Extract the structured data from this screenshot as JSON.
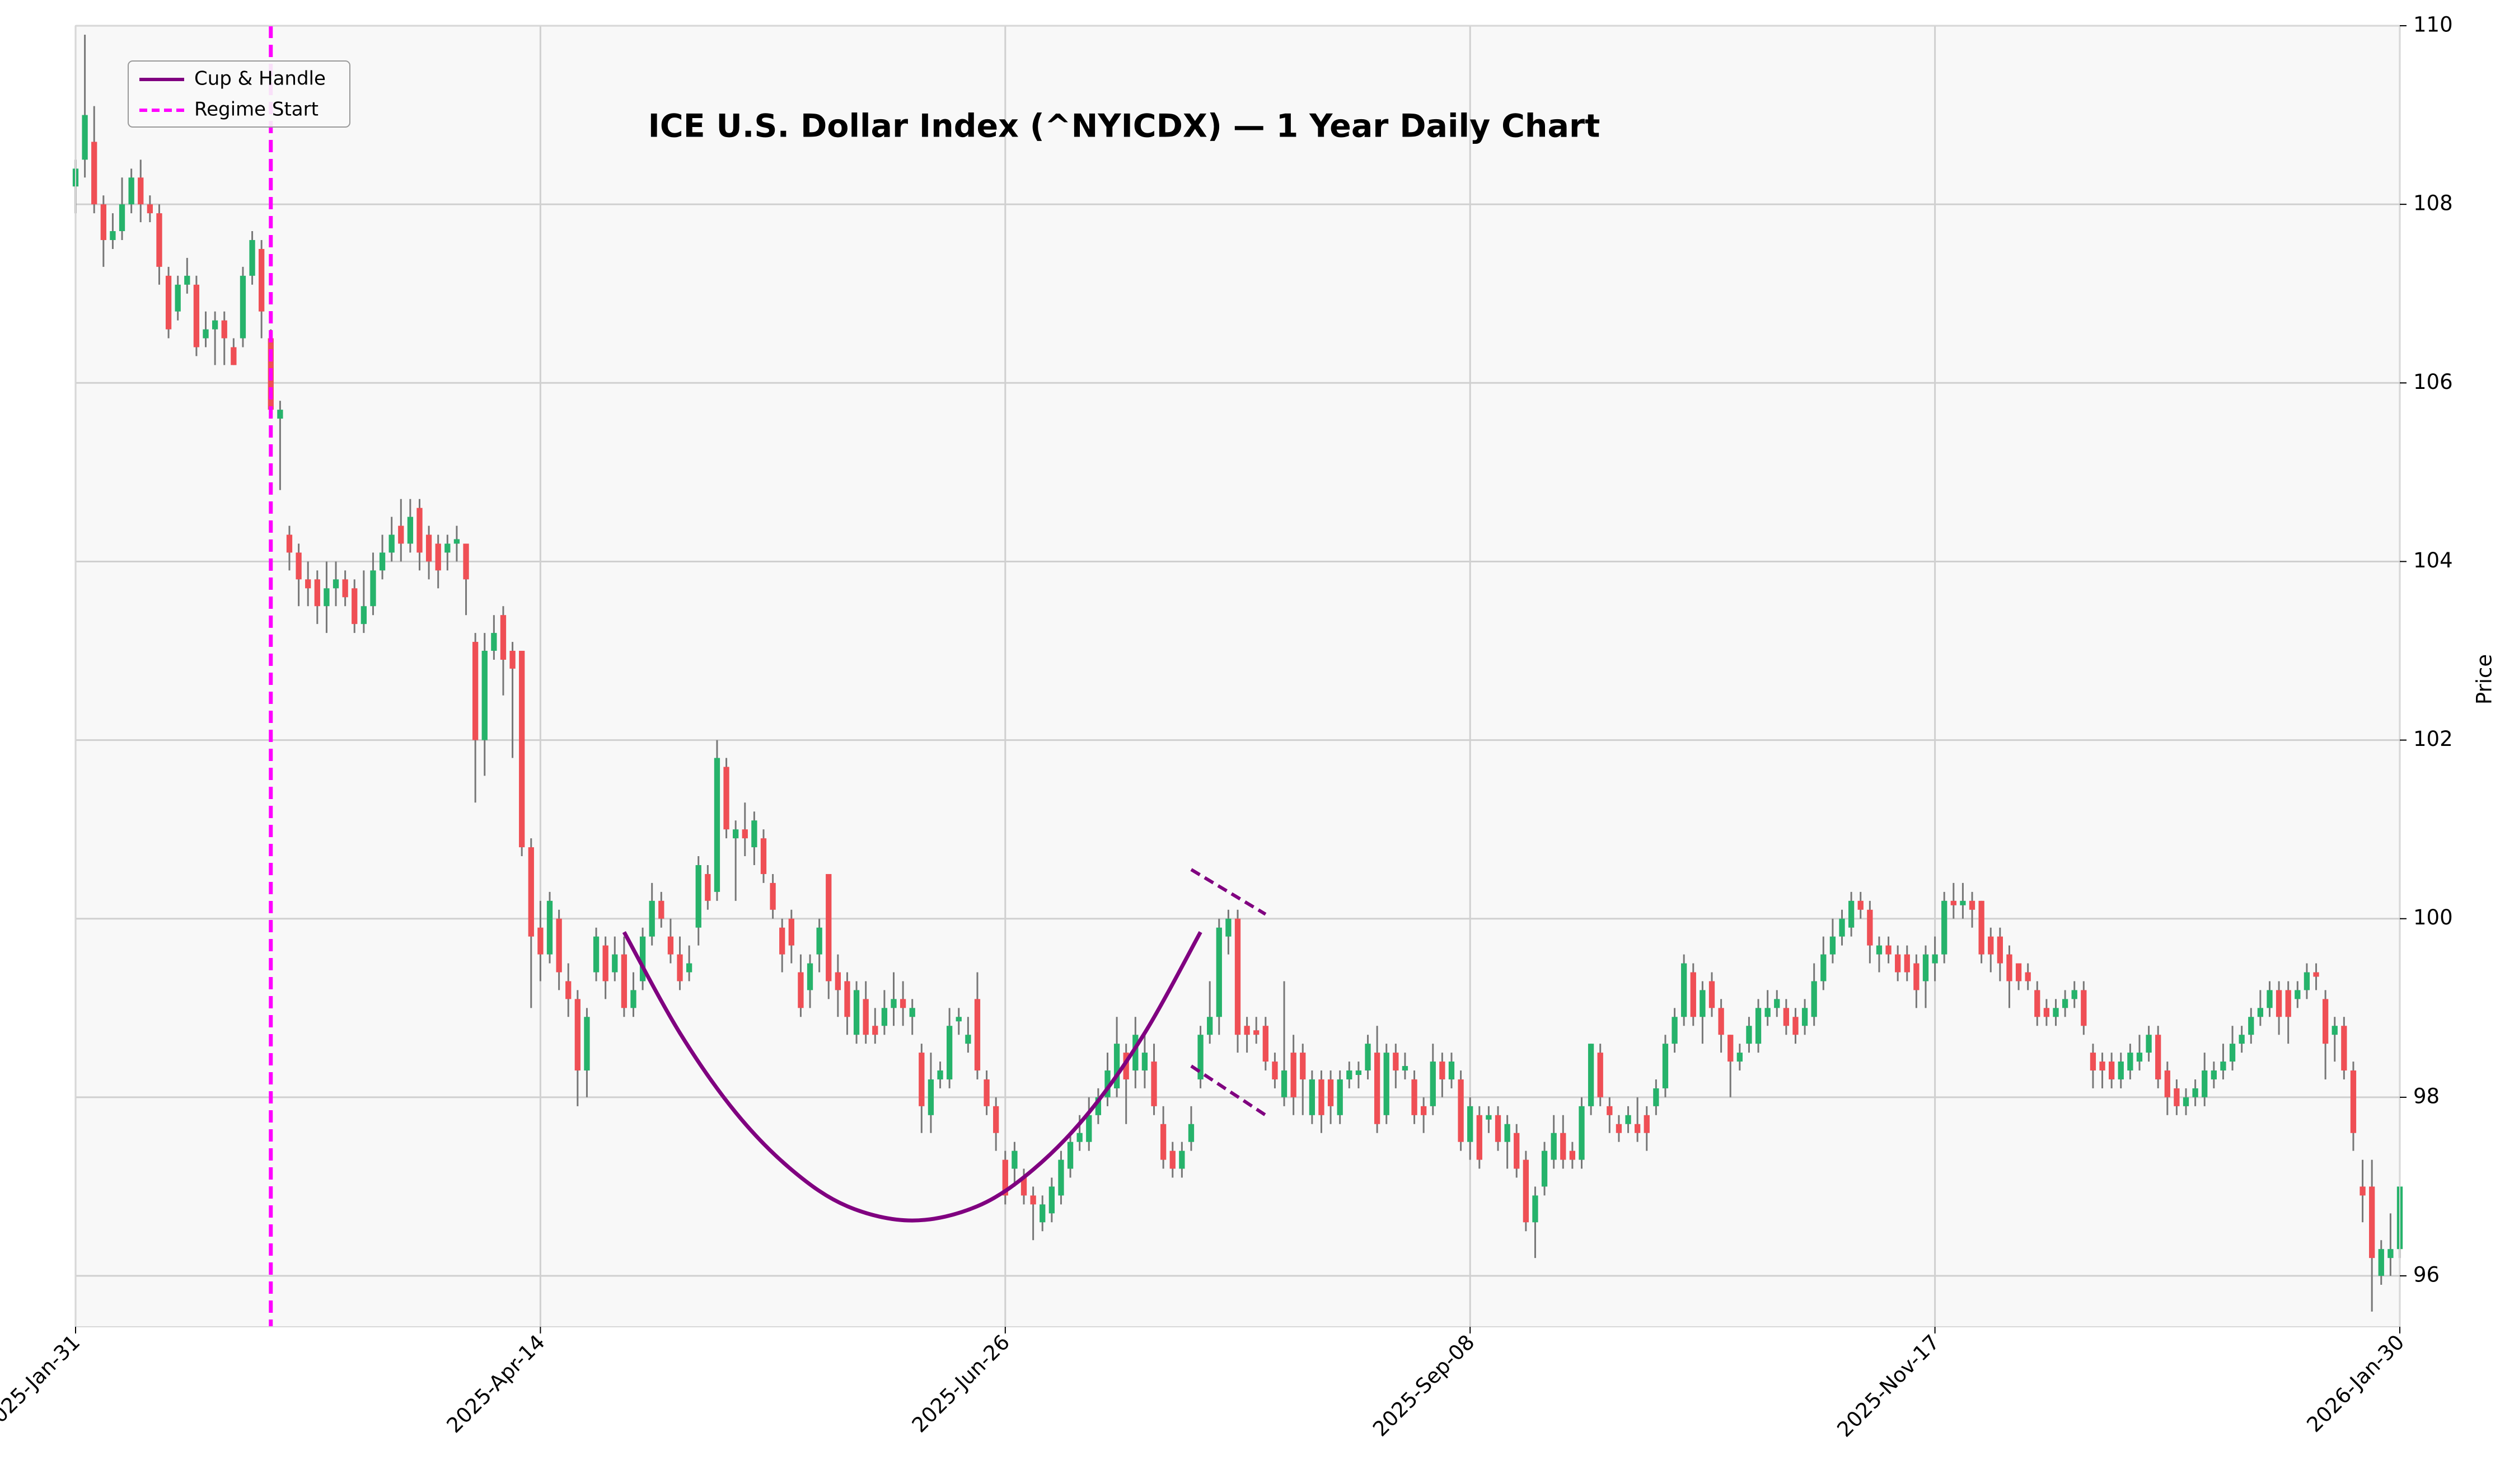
{
  "chart_data": {
    "type": "candlestick",
    "title": "ICE U.S. Dollar Index (^NYICDX) — 1 Year Daily Chart",
    "ylabel": "Price",
    "categories": [
      "2025-Jan-31",
      null,
      null,
      null,
      null,
      null,
      null,
      null,
      null,
      null,
      null,
      null,
      null,
      null,
      null,
      null,
      null,
      null,
      null,
      null,
      null,
      null,
      null,
      null,
      null,
      null,
      null,
      null,
      null,
      null,
      null,
      null,
      null,
      null,
      null,
      null,
      null,
      null,
      null,
      null,
      null,
      null,
      null,
      null,
      null,
      null,
      null,
      null,
      null,
      null,
      "2025-Apr-14",
      null,
      null,
      null,
      null,
      null,
      null,
      null,
      null,
      null,
      null,
      null,
      null,
      null,
      null,
      null,
      null,
      null,
      null,
      null,
      null,
      null,
      null,
      null,
      null,
      null,
      null,
      null,
      null,
      null,
      null,
      null,
      null,
      null,
      null,
      null,
      null,
      null,
      null,
      null,
      null,
      null,
      null,
      null,
      null,
      null,
      null,
      null,
      null,
      null,
      "2025-Jun-26",
      null,
      null,
      null,
      null,
      null,
      null,
      null,
      null,
      null,
      null,
      null,
      null,
      null,
      null,
      null,
      null,
      null,
      null,
      null,
      null,
      null,
      null,
      null,
      null,
      null,
      null,
      null,
      null,
      null,
      null,
      null,
      null,
      null,
      null,
      null,
      null,
      null,
      null,
      null,
      null,
      null,
      null,
      null,
      null,
      null,
      null,
      null,
      null,
      null,
      "2025-Sep-08",
      null,
      null,
      null,
      null,
      null,
      null,
      null,
      null,
      null,
      null,
      null,
      null,
      null,
      null,
      null,
      null,
      null,
      null,
      null,
      null,
      null,
      null,
      null,
      null,
      null,
      null,
      null,
      null,
      null,
      null,
      null,
      null,
      null,
      null,
      null,
      null,
      null,
      null,
      null,
      null,
      null,
      null,
      null,
      null,
      null,
      null,
      null,
      null,
      null,
      "2025-Nov-17",
      null,
      null,
      null,
      null,
      null,
      null,
      null,
      null,
      null,
      null,
      null,
      null,
      null,
      null,
      null,
      null,
      null,
      null,
      null,
      null,
      null,
      null,
      null,
      null,
      null,
      null,
      null,
      null,
      null,
      null,
      null,
      null,
      null,
      null,
      null,
      null,
      null,
      null,
      null,
      null,
      null,
      null,
      null,
      null,
      null,
      null,
      null,
      null,
      null,
      "2026-Jan-30"
    ],
    "open": [
      108.2,
      108.5,
      108.7,
      108.0,
      107.6,
      107.7,
      108.0,
      108.3,
      108.0,
      107.9,
      107.2,
      106.8,
      107.1,
      107.1,
      106.5,
      106.6,
      106.7,
      106.4,
      106.5,
      107.2,
      107.5,
      106.5,
      105.6,
      104.3,
      104.1,
      103.8,
      103.8,
      103.5,
      103.7,
      103.8,
      103.7,
      103.3,
      103.5,
      103.9,
      104.1,
      104.4,
      104.2,
      104.6,
      104.3,
      104.2,
      104.1,
      104.2,
      104.2,
      103.1,
      102.0,
      103.0,
      103.4,
      103.0,
      103.0,
      100.8,
      99.9,
      99.6,
      100.0,
      99.3,
      99.1,
      98.3,
      99.4,
      99.7,
      99.4,
      99.6,
      99.0,
      99.3,
      99.8,
      100.2,
      99.8,
      99.6,
      99.4,
      99.9,
      100.5,
      100.3,
      101.7,
      100.9,
      101.0,
      100.8,
      100.9,
      100.4,
      99.9,
      100.0,
      99.4,
      99.2,
      99.6,
      100.5,
      99.4,
      99.3,
      98.7,
      99.1,
      98.8,
      98.8,
      99.0,
      99.1,
      98.9,
      98.5,
      97.8,
      98.2,
      98.2,
      98.85,
      98.6,
      99.1,
      98.2,
      97.9,
      97.3,
      97.2,
      97.1,
      96.9,
      96.6,
      96.7,
      96.9,
      97.2,
      97.5,
      97.5,
      97.8,
      98.0,
      98.1,
      98.5,
      98.3,
      98.3,
      98.4,
      97.7,
      97.4,
      97.2,
      97.5,
      98.2,
      98.7,
      98.9,
      99.8,
      100.0,
      98.8,
      98.75,
      98.8,
      98.4,
      98.0,
      98.5,
      98.5,
      97.8,
      98.2,
      98.2,
      97.8,
      98.2,
      98.25,
      98.3,
      98.5,
      97.8,
      98.5,
      98.3,
      98.2,
      97.9,
      97.9,
      98.4,
      98.2,
      98.2,
      97.5,
      97.8,
      97.75,
      97.8,
      97.5,
      97.6,
      97.3,
      96.6,
      97.0,
      97.3,
      97.6,
      97.4,
      97.3,
      97.9,
      98.5,
      97.9,
      97.7,
      97.7,
      97.7,
      97.8,
      97.9,
      98.1,
      98.6,
      98.9,
      99.4,
      98.9,
      99.3,
      99.0,
      98.7,
      98.4,
      98.6,
      98.6,
      98.9,
      99.0,
      99.0,
      98.9,
      98.8,
      98.9,
      99.3,
      99.6,
      99.8,
      99.9,
      100.2,
      100.1,
      99.6,
      99.7,
      99.6,
      99.6,
      99.5,
      99.3,
      99.5,
      99.6,
      100.2,
      100.15,
      100.2,
      100.2,
      99.8,
      99.8,
      99.6,
      99.5,
      99.4,
      99.2,
      99.0,
      98.9,
      99.0,
      99.1,
      99.2,
      98.5,
      98.4,
      98.4,
      98.2,
      98.3,
      98.4,
      98.5,
      98.7,
      98.3,
      98.1,
      97.9,
      98.0,
      98.0,
      98.2,
      98.3,
      98.4,
      98.6,
      98.7,
      98.9,
      99.0,
      99.2,
      99.2,
      99.1,
      99.2,
      99.4,
      99.1,
      98.7,
      98.8,
      98.3,
      97.0,
      97.0,
      96.0,
      96.2,
      96.3
    ],
    "high": [
      108.5,
      109.9,
      109.1,
      108.1,
      107.9,
      108.3,
      108.4,
      108.5,
      108.1,
      108.0,
      107.3,
      107.2,
      107.4,
      107.2,
      106.8,
      106.8,
      106.8,
      106.5,
      107.3,
      107.7,
      107.6,
      106.6,
      105.8,
      104.4,
      104.2,
      104.0,
      103.9,
      104.0,
      104.0,
      103.9,
      103.8,
      103.9,
      104.1,
      104.3,
      104.5,
      104.7,
      104.7,
      104.7,
      104.4,
      104.3,
      104.3,
      104.4,
      104.2,
      103.2,
      103.2,
      103.4,
      103.5,
      103.1,
      103.0,
      100.9,
      100.2,
      100.3,
      100.1,
      99.5,
      99.2,
      99.0,
      99.9,
      99.8,
      99.8,
      99.8,
      99.4,
      99.9,
      100.4,
      100.3,
      100.0,
      99.8,
      99.7,
      100.7,
      100.6,
      102.0,
      101.8,
      101.1,
      101.3,
      101.2,
      101.0,
      100.5,
      100.0,
      100.1,
      99.6,
      99.6,
      100.0,
      100.5,
      99.6,
      99.4,
      99.3,
      99.3,
      99.0,
      99.2,
      99.4,
      99.3,
      99.1,
      98.6,
      98.5,
      98.4,
      99.0,
      99.0,
      98.9,
      99.4,
      98.3,
      98.0,
      97.4,
      97.5,
      97.2,
      97.0,
      96.9,
      97.1,
      97.4,
      97.6,
      97.8,
      98.0,
      98.1,
      98.5,
      98.9,
      98.6,
      98.9,
      98.7,
      98.6,
      97.9,
      97.5,
      97.5,
      97.9,
      98.8,
      99.3,
      100.0,
      100.1,
      100.1,
      98.9,
      98.9,
      98.9,
      98.5,
      99.3,
      98.7,
      98.6,
      98.3,
      98.3,
      98.3,
      98.3,
      98.4,
      98.4,
      98.7,
      98.8,
      98.6,
      98.6,
      98.5,
      98.3,
      98.0,
      98.6,
      98.5,
      98.5,
      98.3,
      98.0,
      97.9,
      97.9,
      97.9,
      97.8,
      97.7,
      97.4,
      97.0,
      97.5,
      97.8,
      97.8,
      97.5,
      98.0,
      98.6,
      98.6,
      98.0,
      97.8,
      97.9,
      98.0,
      97.9,
      98.2,
      98.7,
      99.0,
      99.6,
      99.5,
      99.3,
      99.4,
      99.1,
      98.7,
      98.6,
      98.9,
      99.1,
      99.2,
      99.2,
      99.1,
      99.0,
      99.1,
      99.5,
      99.8,
      100.0,
      100.1,
      100.3,
      100.3,
      100.2,
      99.8,
      99.8,
      99.7,
      99.7,
      99.6,
      99.7,
      99.8,
      100.3,
      100.4,
      100.4,
      100.3,
      100.2,
      99.9,
      99.9,
      99.7,
      99.5,
      99.5,
      99.3,
      99.1,
      99.1,
      99.2,
      99.3,
      99.3,
      98.6,
      98.5,
      98.5,
      98.5,
      98.6,
      98.7,
      98.8,
      98.8,
      98.4,
      98.2,
      98.1,
      98.2,
      98.5,
      98.4,
      98.6,
      98.8,
      98.8,
      99.0,
      99.2,
      99.3,
      99.3,
      99.3,
      99.3,
      99.5,
      99.5,
      99.2,
      98.9,
      98.9,
      98.4,
      97.3,
      97.3,
      96.4,
      96.7,
      97.0
    ],
    "low": [
      107.9,
      108.3,
      107.9,
      107.3,
      107.5,
      107.6,
      107.9,
      107.8,
      107.8,
      107.1,
      106.5,
      106.7,
      107.0,
      106.3,
      106.4,
      106.2,
      106.2,
      106.2,
      106.4,
      107.1,
      106.5,
      105.6,
      104.8,
      103.9,
      103.5,
      103.5,
      103.3,
      103.2,
      103.5,
      103.5,
      103.2,
      103.2,
      103.4,
      103.8,
      104.0,
      104.0,
      104.1,
      103.9,
      103.8,
      103.7,
      103.9,
      104.0,
      103.4,
      101.3,
      101.6,
      102.9,
      102.5,
      101.8,
      100.7,
      99.0,
      99.3,
      99.5,
      99.2,
      98.9,
      97.9,
      98.0,
      99.3,
      99.1,
      99.3,
      98.9,
      98.9,
      99.2,
      99.7,
      99.9,
      99.5,
      99.2,
      99.3,
      99.7,
      100.1,
      100.2,
      100.9,
      100.2,
      100.7,
      100.6,
      100.4,
      100.0,
      99.4,
      99.5,
      98.9,
      99.0,
      99.4,
      99.1,
      98.9,
      98.7,
      98.6,
      98.6,
      98.6,
      98.7,
      98.8,
      98.8,
      98.7,
      97.6,
      97.6,
      98.1,
      98.1,
      98.7,
      98.5,
      98.2,
      97.8,
      97.4,
      96.8,
      97.0,
      96.8,
      96.4,
      96.5,
      96.6,
      96.8,
      97.1,
      97.4,
      97.4,
      97.7,
      97.9,
      98.0,
      97.7,
      98.1,
      98.1,
      97.8,
      97.2,
      97.1,
      97.1,
      97.4,
      98.1,
      98.6,
      98.7,
      99.6,
      98.5,
      98.5,
      98.6,
      98.3,
      98.1,
      97.9,
      97.8,
      97.8,
      97.7,
      97.6,
      97.7,
      97.7,
      98.1,
      98.1,
      98.2,
      97.6,
      97.7,
      98.1,
      98.2,
      97.7,
      97.6,
      97.8,
      98.0,
      98.1,
      97.4,
      97.3,
      97.2,
      97.6,
      97.4,
      97.2,
      97.1,
      96.5,
      96.2,
      96.9,
      97.2,
      97.2,
      97.2,
      97.2,
      97.8,
      97.9,
      97.6,
      97.5,
      97.6,
      97.5,
      97.4,
      97.8,
      98.0,
      98.5,
      98.8,
      98.8,
      98.6,
      98.9,
      98.5,
      98.0,
      98.3,
      98.5,
      98.5,
      98.8,
      98.9,
      98.7,
      98.6,
      98.7,
      98.8,
      99.2,
      99.5,
      99.7,
      99.8,
      100.0,
      99.5,
      99.4,
      99.5,
      99.3,
      99.3,
      99.0,
      99.0,
      99.3,
      99.5,
      100.0,
      100.0,
      99.9,
      99.5,
      99.4,
      99.3,
      99.0,
      99.2,
      99.2,
      98.8,
      98.8,
      98.8,
      98.9,
      99.0,
      98.7,
      98.1,
      98.1,
      98.1,
      98.1,
      98.2,
      98.3,
      98.4,
      98.1,
      97.8,
      97.8,
      97.8,
      97.9,
      97.9,
      98.1,
      98.2,
      98.3,
      98.5,
      98.6,
      98.8,
      98.9,
      98.7,
      98.6,
      99.0,
      99.1,
      99.2,
      98.2,
      98.4,
      98.2,
      97.4,
      96.6,
      95.6,
      95.9,
      96.0,
      96.2
    ],
    "close": [
      108.4,
      109.0,
      108.0,
      107.6,
      107.7,
      108.0,
      108.3,
      108.0,
      107.9,
      107.3,
      106.6,
      107.1,
      107.2,
      106.4,
      106.6,
      106.7,
      106.5,
      106.2,
      107.2,
      107.6,
      106.8,
      105.7,
      105.7,
      104.1,
      103.8,
      103.7,
      103.5,
      103.7,
      103.8,
      103.6,
      103.3,
      103.5,
      103.9,
      104.1,
      104.3,
      104.2,
      104.5,
      104.1,
      104.0,
      103.9,
      104.2,
      104.25,
      103.8,
      102.0,
      103.0,
      103.2,
      102.9,
      102.8,
      100.8,
      99.8,
      99.6,
      100.2,
      99.4,
      99.1,
      98.3,
      98.9,
      99.8,
      99.3,
      99.6,
      99.0,
      99.2,
      99.8,
      100.2,
      100.0,
      99.6,
      99.3,
      99.5,
      100.6,
      100.2,
      101.8,
      101.0,
      101.0,
      100.9,
      101.1,
      100.5,
      100.1,
      99.6,
      99.7,
      99.0,
      99.5,
      99.9,
      99.3,
      99.2,
      98.9,
      99.2,
      98.7,
      98.7,
      99.0,
      99.1,
      99.0,
      99.0,
      97.9,
      98.2,
      98.3,
      98.8,
      98.9,
      98.7,
      98.3,
      97.9,
      97.6,
      96.9,
      97.4,
      96.9,
      96.8,
      96.8,
      97.0,
      97.3,
      97.5,
      97.6,
      97.8,
      98.0,
      98.3,
      98.6,
      98.2,
      98.7,
      98.5,
      97.9,
      97.3,
      97.2,
      97.4,
      97.7,
      98.7,
      98.9,
      99.9,
      100.0,
      98.7,
      98.7,
      98.7,
      98.4,
      98.2,
      98.3,
      98.0,
      98.2,
      98.2,
      97.8,
      97.9,
      98.2,
      98.3,
      98.3,
      98.6,
      97.7,
      98.5,
      98.3,
      98.35,
      97.8,
      97.8,
      98.4,
      98.2,
      98.4,
      97.5,
      97.9,
      97.3,
      97.8,
      97.5,
      97.7,
      97.2,
      96.6,
      96.9,
      97.4,
      97.6,
      97.3,
      97.3,
      97.9,
      98.6,
      98.0,
      97.8,
      97.6,
      97.8,
      97.6,
      97.6,
      98.1,
      98.6,
      98.9,
      99.5,
      98.9,
      99.2,
      99.0,
      98.7,
      98.4,
      98.5,
      98.8,
      99.0,
      99.0,
      99.1,
      98.8,
      98.7,
      99.0,
      99.3,
      99.6,
      99.8,
      100.0,
      100.2,
      100.1,
      99.7,
      99.7,
      99.6,
      99.4,
      99.4,
      99.2,
      99.6,
      99.6,
      100.2,
      100.15,
      100.2,
      100.1,
      99.6,
      99.6,
      99.5,
      99.3,
      99.3,
      99.3,
      98.9,
      98.9,
      99.0,
      99.1,
      99.2,
      98.8,
      98.3,
      98.3,
      98.2,
      98.4,
      98.5,
      98.5,
      98.7,
      98.2,
      98.0,
      97.9,
      98.0,
      98.1,
      98.3,
      98.3,
      98.4,
      98.6,
      98.7,
      98.9,
      99.0,
      99.2,
      98.9,
      98.9,
      99.2,
      99.4,
      99.35,
      98.6,
      98.8,
      98.3,
      97.6,
      96.9,
      96.2,
      96.3,
      96.3,
      97.0
    ],
    "up_color": "#26b36b",
    "down_color": "#ef4f55",
    "wick_color": "#777777",
    "ylim": [
      95.43,
      110
    ],
    "yticks": [
      96,
      98,
      100,
      102,
      104,
      106,
      108,
      110
    ],
    "grid": true,
    "legend": "upper left",
    "cup": {
      "name": "Cup & Handle",
      "color": "#800080",
      "x": [
        59,
        65,
        71,
        77,
        83,
        90,
        97,
        103,
        109,
        115,
        121
      ],
      "values": [
        99.85,
        98.72,
        97.83,
        97.19,
        96.78,
        96.62,
        96.78,
        97.19,
        97.83,
        98.72,
        99.85
      ]
    },
    "handle_lines": [
      {
        "color": "#800080",
        "x": [
          120,
          128
        ],
        "values": [
          100.55,
          100.05
        ]
      },
      {
        "color": "#800080",
        "x": [
          120,
          128
        ],
        "values": [
          98.35,
          97.8
        ]
      }
    ],
    "regime": {
      "name": "Regime Start",
      "color": "#ff00ff",
      "x": 21
    }
  }
}
